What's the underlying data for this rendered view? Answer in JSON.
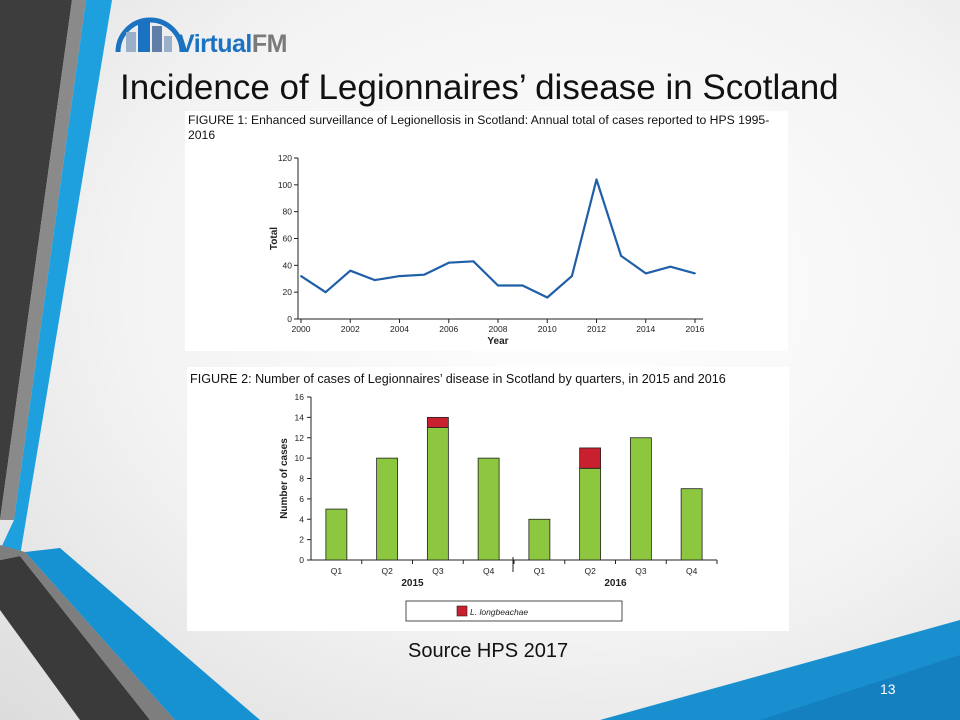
{
  "slide": {
    "title": "Incidence of Legionnaires’ disease in Scotland",
    "source": "Source HPS 2017",
    "page_number": "13"
  },
  "logo": {
    "text_primary": "Virtual",
    "text_secondary": "FM"
  },
  "colors": {
    "accent_blue": "#1a9ad8",
    "dark_gray": "#555555",
    "line_series": "#1f5fa8",
    "bar_green": "#8dc63f",
    "bar_red": "#c8202f"
  },
  "chart_data": [
    {
      "type": "line",
      "title": "FIGURE 1: Enhanced surveillance of Legionellosis in Scotland: Annual total of cases reported to HPS 1995-2016",
      "xlabel": "Year",
      "ylabel": "Total",
      "xlim": [
        2000,
        2016
      ],
      "ylim": [
        0,
        120
      ],
      "x_ticks": [
        "2000",
        "2002",
        "2004",
        "2006",
        "2008",
        "2010",
        "2012",
        "2014",
        "2016"
      ],
      "y_ticks": [
        "0",
        "20",
        "40",
        "60",
        "80",
        "100",
        "120"
      ],
      "x": [
        2000,
        2001,
        2002,
        2003,
        2004,
        2005,
        2006,
        2007,
        2008,
        2009,
        2010,
        2011,
        2012,
        2013,
        2014,
        2015,
        2016
      ],
      "series": [
        {
          "values": [
            32,
            20,
            36,
            29,
            32,
            33,
            42,
            43,
            25,
            25,
            16,
            32,
            104,
            47,
            34,
            39,
            34
          ]
        }
      ],
      "grid": false
    },
    {
      "type": "bar",
      "stacked": true,
      "title": "FIGURE 2: Number of cases of Legionnaires’ disease in Scotland by quarters, in 2015 and 2016",
      "ylabel": "Number of cases",
      "ylim": [
        0,
        16
      ],
      "y_ticks": [
        "0",
        "2",
        "4",
        "6",
        "8",
        "10",
        "12",
        "14",
        "16"
      ],
      "categories": [
        "Q1",
        "Q2",
        "Q3",
        "Q4",
        "Q1",
        "Q2",
        "Q3",
        "Q4"
      ],
      "groups": [
        "2015",
        "2016"
      ],
      "series": [
        {
          "values": [
            5,
            10,
            13,
            10,
            4,
            9,
            12,
            7
          ]
        },
        {
          "name": "L. longbeachae",
          "values": [
            0,
            0,
            1,
            0,
            0,
            2,
            0,
            0
          ]
        }
      ],
      "legend_position": "bottom"
    }
  ]
}
